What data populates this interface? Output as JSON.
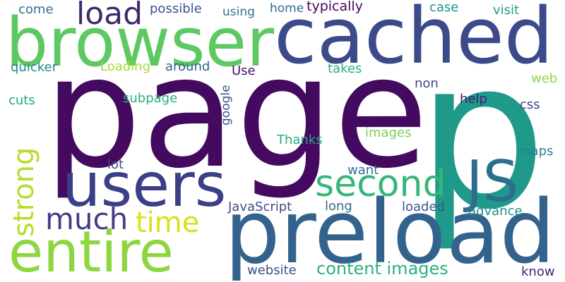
{
  "words": [
    {
      "text": "page",
      "color": "#440a5f"
    },
    {
      "text": "p",
      "color": "#1f9a8a"
    },
    {
      "text": "cached",
      "color": "#3c4a8a"
    },
    {
      "text": "browser",
      "color": "#5ec962"
    },
    {
      "text": "preload",
      "color": "#33638d"
    },
    {
      "text": "users",
      "color": "#3b3f86"
    },
    {
      "text": "entire",
      "color": "#8ed542"
    },
    {
      "text": "JS",
      "color": "#2d6e8e"
    },
    {
      "text": "second",
      "color": "#35b779"
    },
    {
      "text": "load",
      "color": "#3e2a6d"
    },
    {
      "text": "much",
      "color": "#433e85"
    },
    {
      "text": "time",
      "color": "#d6e21a"
    },
    {
      "text": "strong",
      "color": "#b8de29"
    },
    {
      "text": "content images",
      "color": "#2ab07f"
    },
    {
      "text": "come",
      "color": "#2e6f8e"
    },
    {
      "text": "possible",
      "color": "#3b528b"
    },
    {
      "text": "using",
      "color": "#2c728e"
    },
    {
      "text": "home",
      "color": "#2d708e"
    },
    {
      "text": "typically",
      "color": "#46075a"
    },
    {
      "text": "case",
      "color": "#21918c"
    },
    {
      "text": "visit",
      "color": "#1fa187"
    },
    {
      "text": "quicker",
      "color": "#238a8d"
    },
    {
      "text": "Loading",
      "color": "#a5db36"
    },
    {
      "text": "around",
      "color": "#355f8d"
    },
    {
      "text": "Use",
      "color": "#471063"
    },
    {
      "text": "takes",
      "color": "#29af7f"
    },
    {
      "text": "web",
      "color": "#8bd646"
    },
    {
      "text": "non",
      "color": "#404688"
    },
    {
      "text": "cuts",
      "color": "#22a884"
    },
    {
      "text": "subpage",
      "color": "#2cb17e"
    },
    {
      "text": "google",
      "color": "#3a548c"
    },
    {
      "text": "help",
      "color": "#48186a"
    },
    {
      "text": "css",
      "color": "#3e4989"
    },
    {
      "text": "Thanks",
      "color": "#26ad81"
    },
    {
      "text": "images",
      "color": "#7ad151"
    },
    {
      "text": "maps",
      "color": "#27808e"
    },
    {
      "text": "lot",
      "color": "#3c4f8a"
    },
    {
      "text": "want",
      "color": "#2e6d8e"
    },
    {
      "text": "JavaScript",
      "color": "#3e4c8a"
    },
    {
      "text": "long",
      "color": "#2f6c8e"
    },
    {
      "text": "loaded",
      "color": "#39568c"
    },
    {
      "text": "advance",
      "color": "#228d8d"
    },
    {
      "text": "website",
      "color": "#3d4e8a"
    },
    {
      "text": "know",
      "color": "#482374"
    }
  ]
}
